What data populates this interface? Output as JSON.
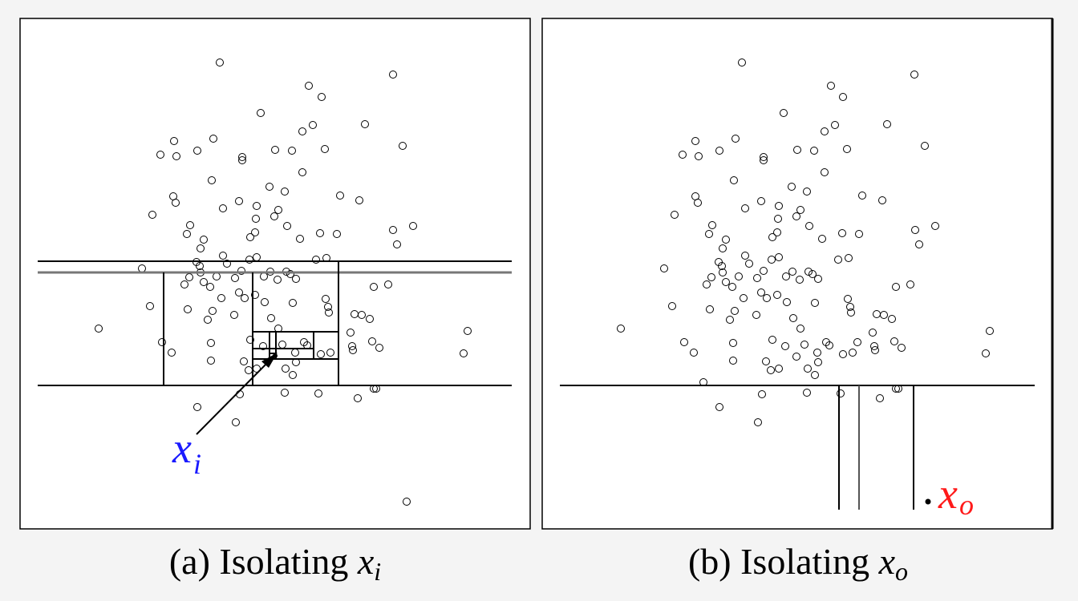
{
  "colors": {
    "panel_background": "#ffffff",
    "page_background": "#f4f4f4",
    "ink": "#000000",
    "inlier_label": "#1a1aff",
    "outlier_label": "#ff1a1a"
  },
  "panels": [
    {
      "id": "a",
      "caption_prefix": "(a) Isolating ",
      "caption_var": "x",
      "caption_sub": "i",
      "point_label_var": "x",
      "point_label_sub": "i"
    },
    {
      "id": "b",
      "caption_prefix": "(b) Isolating ",
      "caption_var": "x",
      "caption_sub": "o",
      "point_label_var": "x",
      "point_label_sub": "o"
    }
  ]
}
